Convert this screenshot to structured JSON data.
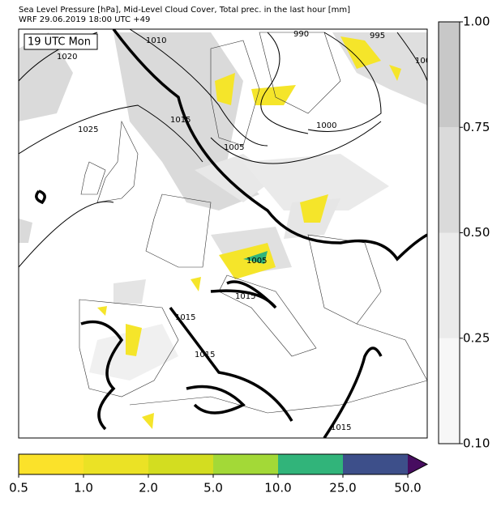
{
  "header": {
    "line1": "Sea Level Pressure [hPa], Mid-Level Cloud Cover, Total prec. in the last hour [mm]",
    "line2": "WRF 29.06.2019 18:00 UTC +49"
  },
  "map": {
    "time_label": "19 UTC Mon",
    "isobar_labels": [
      "1020",
      "1010",
      "1025",
      "1015",
      "990",
      "995",
      "100",
      "1000",
      "1005",
      "1005",
      "1015",
      "1015",
      "1015",
      "1015"
    ]
  },
  "cloud_colorbar": {
    "colors": [
      "#f7f7f7",
      "#ebebeb",
      "#dadada",
      "#c8c8c8"
    ],
    "ticks": [
      {
        "value": 0.1,
        "label": "0.10"
      },
      {
        "value": 0.25,
        "label": "0.25"
      },
      {
        "value": 0.5,
        "label": "0.50"
      },
      {
        "value": 0.75,
        "label": "0.75"
      },
      {
        "value": 1,
        "label": "1.00"
      }
    ]
  },
  "precip_colorbar": {
    "colors": [
      "#fbe22a",
      "#ebe225",
      "#d3dd20",
      "#a3d937",
      "#31b47a",
      "#3d4f8a",
      "#470d60"
    ],
    "ticks": [
      {
        "value": 0.5,
        "label": "0.5"
      },
      {
        "value": 1,
        "label": "1.0"
      },
      {
        "value": 2,
        "label": "2.0"
      },
      {
        "value": 5,
        "label": "5.0"
      },
      {
        "value": 10,
        "label": "10.0"
      },
      {
        "value": 25,
        "label": "25.0"
      },
      {
        "value": 50,
        "label": "50.0"
      }
    ]
  }
}
